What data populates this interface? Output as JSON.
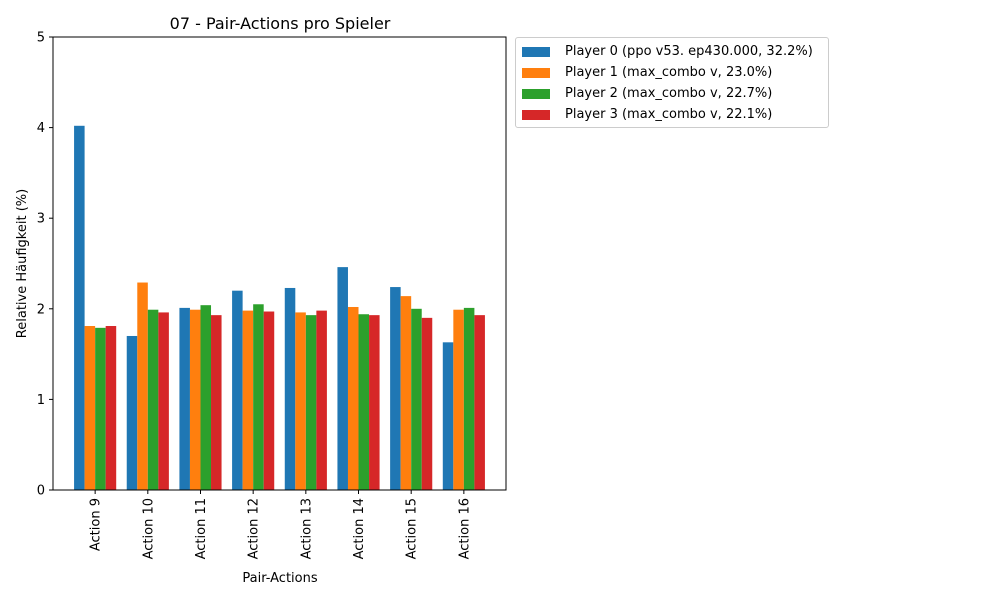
{
  "chart_data": {
    "type": "bar",
    "title": "07 - Pair-Actions pro Spieler",
    "xlabel": "Pair-Actions",
    "ylabel": "Relative Häufigkeit (%)",
    "ylim": [
      0,
      5
    ],
    "yticks": [
      0,
      1,
      2,
      3,
      4,
      5
    ],
    "grid": false,
    "legend_position": "outside-right-top",
    "categories": [
      "Action 9",
      "Action 10",
      "Action 11",
      "Action 12",
      "Action 13",
      "Action 14",
      "Action 15",
      "Action 16"
    ],
    "series": [
      {
        "name": "Player 0 (ppo v53. ep430.000, 32.2%)",
        "color": "#1f77b4",
        "values": [
          4.02,
          1.7,
          2.01,
          2.2,
          2.23,
          2.46,
          2.24,
          1.63
        ]
      },
      {
        "name": "Player 1 (max_combo v, 23.0%)",
        "color": "#ff7f0e",
        "values": [
          1.81,
          2.29,
          1.99,
          1.98,
          1.96,
          2.02,
          2.14,
          1.99
        ]
      },
      {
        "name": "Player 2 (max_combo v, 22.7%)",
        "color": "#2ca02c",
        "values": [
          1.79,
          1.99,
          2.04,
          2.05,
          1.93,
          1.94,
          2.0,
          2.01
        ]
      },
      {
        "name": "Player 3 (max_combo v, 22.1%)",
        "color": "#d62728",
        "values": [
          1.81,
          1.96,
          1.93,
          1.97,
          1.98,
          1.93,
          1.9,
          1.93
        ]
      }
    ]
  }
}
